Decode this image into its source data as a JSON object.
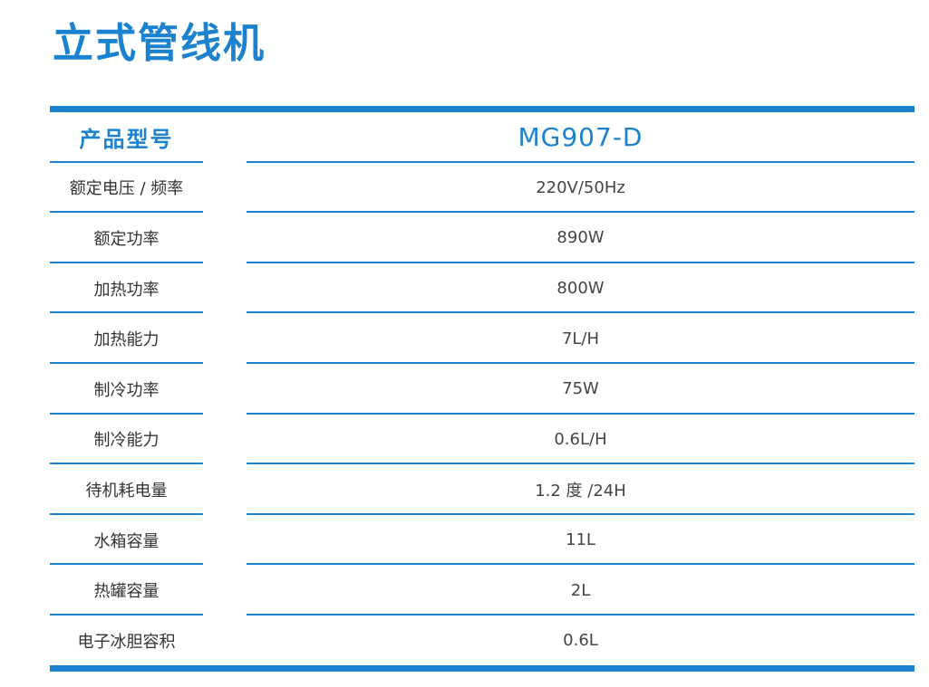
{
  "title": "立式管线机",
  "header": {
    "label": "产品型号",
    "value": "MG907-D"
  },
  "rows": [
    {
      "label": "额定电压 / 频率",
      "value": "220V/50Hz"
    },
    {
      "label": "额定功率",
      "value": "890W"
    },
    {
      "label": "加热功率",
      "value": "800W"
    },
    {
      "label": "加热能力",
      "value": "7L/H"
    },
    {
      "label": "制冷功率",
      "value": "75W"
    },
    {
      "label": "制冷能力",
      "value": "0.6L/H"
    },
    {
      "label": "待机耗电量",
      "value": "1.2 度 /24H"
    },
    {
      "label": "水箱容量",
      "value": "11L"
    },
    {
      "label": "热罐容量",
      "value": "2L"
    },
    {
      "label": "电子冰胆容积",
      "value": "0.6L"
    }
  ],
  "colors": {
    "accent": "#1a82cf",
    "text": "#333333"
  }
}
